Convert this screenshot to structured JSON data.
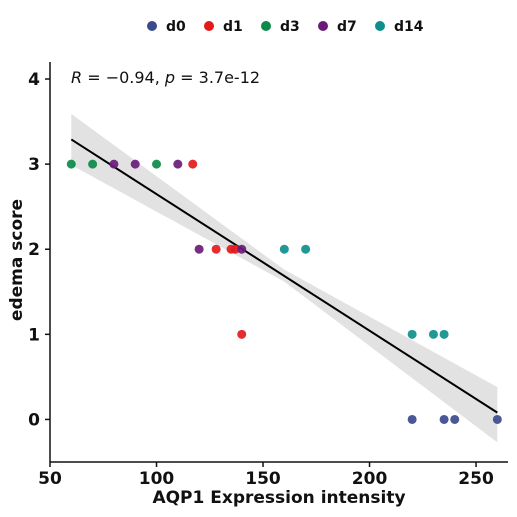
{
  "chart_data": {
    "type": "scatter",
    "xlabel": "AQP1 Expression intensity",
    "ylabel": "edema score",
    "xlim": [
      50,
      265
    ],
    "ylim": [
      -0.5,
      4.2
    ],
    "xticks": [
      50,
      100,
      150,
      200,
      250
    ],
    "yticks": [
      0,
      1,
      2,
      3,
      4
    ],
    "grid": false,
    "legend_position": "top",
    "annotation": {
      "r_label": "R",
      "r_value": " = −0.94, ",
      "p_label": "p",
      "p_value": " = 3.7e-12"
    },
    "series": [
      {
        "name": "d0",
        "color": "#3b4a8c",
        "points": [
          [
            220,
            0
          ],
          [
            235,
            0
          ],
          [
            240,
            0
          ],
          [
            260,
            0
          ]
        ]
      },
      {
        "name": "d1",
        "color": "#e31a1c",
        "points": [
          [
            117,
            3
          ],
          [
            128,
            2
          ],
          [
            135,
            2
          ],
          [
            137,
            2
          ],
          [
            140,
            1
          ]
        ]
      },
      {
        "name": "d3",
        "color": "#0b8a4a",
        "points": [
          [
            60,
            3
          ],
          [
            70,
            3
          ],
          [
            100,
            3
          ]
        ]
      },
      {
        "name": "d7",
        "color": "#6a1b7a",
        "points": [
          [
            80,
            3
          ],
          [
            90,
            3
          ],
          [
            110,
            3
          ],
          [
            120,
            2
          ],
          [
            140,
            2
          ]
        ]
      },
      {
        "name": "d14",
        "color": "#0e8f8a",
        "points": [
          [
            160,
            2
          ],
          [
            170,
            2
          ],
          [
            220,
            1
          ],
          [
            230,
            1
          ],
          [
            235,
            1
          ]
        ]
      }
    ],
    "regression": {
      "line": [
        [
          60,
          3.29
        ],
        [
          260,
          0.08
        ]
      ],
      "ci_upper": [
        [
          60,
          3.59
        ],
        [
          160,
          1.76
        ],
        [
          260,
          0.38
        ]
      ],
      "ci_lower": [
        [
          60,
          2.99
        ],
        [
          160,
          1.62
        ],
        [
          260,
          -0.27
        ]
      ],
      "line_color": "#000000",
      "band_color": "#cfcfcf"
    }
  }
}
